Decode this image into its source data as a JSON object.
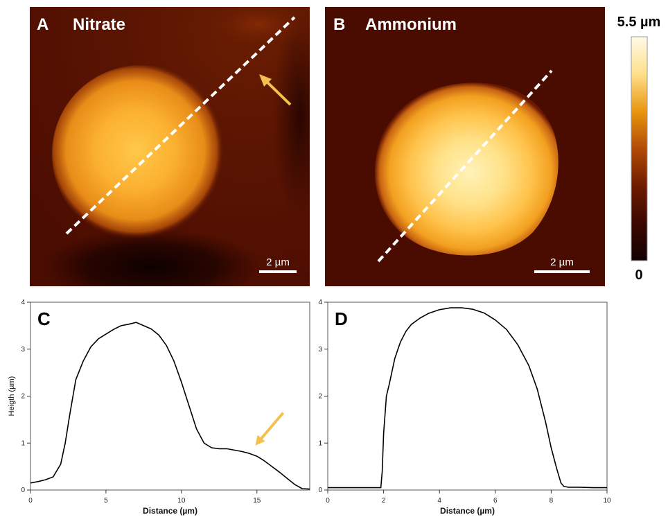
{
  "panels": {
    "A": {
      "letter": "A",
      "title": "Nitrate",
      "scalebar_label": "2 µm"
    },
    "B": {
      "letter": "B",
      "title": "Ammonium",
      "scalebar_label": "2 µm"
    }
  },
  "colorbar": {
    "max_label": "5.5 µm",
    "min_label": "0",
    "stops": [
      "#120202",
      "#3c0700",
      "#6f1c00",
      "#b24a06",
      "#e8960f",
      "#ffe08a",
      "#fffbe8"
    ]
  },
  "colors": {
    "dashed_line": "#ffffff",
    "arrow": "#f2c14e",
    "profile_line": "#000000"
  },
  "chart_data": [
    {
      "type": "line",
      "panel_label": "C",
      "xlabel": "Distance (µm)",
      "ylabel": "Heigth (µm)",
      "xlim": [
        0,
        18.5
      ],
      "ylim": [
        0,
        4
      ],
      "xticks": [
        0,
        5,
        10,
        15
      ],
      "yticks": [
        0,
        1,
        2,
        3,
        4
      ],
      "grid": false,
      "series": [
        {
          "x": [
            0,
            0.5,
            1.0,
            1.5,
            2.0,
            2.3,
            2.6,
            3.0,
            3.5,
            4.0,
            4.5,
            5.0,
            5.5,
            6.0,
            6.5,
            7.0,
            7.5,
            8.0,
            8.5,
            9.0,
            9.5,
            10.0,
            10.5,
            11.0,
            11.5,
            12.0,
            12.5,
            13.0,
            13.5,
            14.0,
            14.5,
            15.0,
            15.5,
            16.0,
            16.5,
            17.0,
            17.5,
            18.0,
            18.5
          ],
          "y": [
            0.15,
            0.18,
            0.22,
            0.28,
            0.55,
            1.0,
            1.6,
            2.35,
            2.75,
            3.05,
            3.22,
            3.32,
            3.42,
            3.5,
            3.53,
            3.57,
            3.5,
            3.43,
            3.3,
            3.08,
            2.75,
            2.3,
            1.8,
            1.3,
            1.0,
            0.9,
            0.88,
            0.88,
            0.85,
            0.82,
            0.78,
            0.72,
            0.62,
            0.5,
            0.38,
            0.25,
            0.12,
            0.03,
            0.02
          ]
        }
      ],
      "annotations": [
        {
          "type": "arrow",
          "color": "#f2c14e",
          "points_to": [
            14.9,
            0.95
          ]
        }
      ]
    },
    {
      "type": "line",
      "panel_label": "D",
      "xlabel": "Distance (µm)",
      "ylabel": "",
      "xlim": [
        0,
        10
      ],
      "ylim": [
        0,
        4
      ],
      "xticks": [
        0,
        2,
        4,
        6,
        8,
        10
      ],
      "yticks": [
        0,
        1,
        2,
        3,
        4
      ],
      "grid": false,
      "series": [
        {
          "x": [
            0,
            0.5,
            1.0,
            1.5,
            1.9,
            1.95,
            2.0,
            2.1,
            2.2,
            2.4,
            2.6,
            2.8,
            3.0,
            3.3,
            3.6,
            4.0,
            4.4,
            4.8,
            5.2,
            5.6,
            6.0,
            6.4,
            6.8,
            7.2,
            7.5,
            7.8,
            8.0,
            8.2,
            8.35,
            8.45,
            8.6,
            9.0,
            9.5,
            10.0
          ],
          "y": [
            0.05,
            0.05,
            0.05,
            0.05,
            0.05,
            0.4,
            1.2,
            2.0,
            2.25,
            2.8,
            3.15,
            3.38,
            3.53,
            3.66,
            3.76,
            3.84,
            3.88,
            3.88,
            3.85,
            3.77,
            3.62,
            3.42,
            3.1,
            2.65,
            2.15,
            1.45,
            0.9,
            0.45,
            0.15,
            0.08,
            0.06,
            0.06,
            0.05,
            0.05
          ]
        }
      ]
    }
  ]
}
